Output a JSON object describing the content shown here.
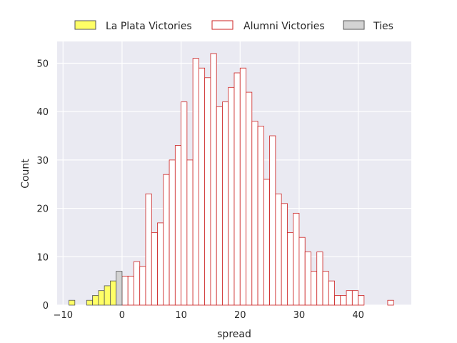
{
  "chart_data": {
    "type": "bar",
    "xlabel": "spread",
    "ylabel": "Count",
    "xlim": [
      -11,
      49
    ],
    "ylim": [
      0,
      54.5
    ],
    "xticks": [
      -10,
      0,
      10,
      20,
      30,
      40
    ],
    "yticks": [
      0,
      10,
      20,
      30,
      40,
      50
    ],
    "grid": true,
    "legend_position": "top-center",
    "bin_width": 1,
    "series": [
      {
        "name": "La Plata Victories",
        "fill": "#ffff66",
        "stroke": "#555555",
        "bins": [
          [
            -9,
            1
          ],
          [
            -6,
            1
          ],
          [
            -5,
            2
          ],
          [
            -4,
            3
          ],
          [
            -3,
            4
          ],
          [
            -2,
            5
          ]
        ]
      },
      {
        "name": "Alumni Victories",
        "fill": "#ffffff",
        "stroke": "#cc2222",
        "bins": [
          [
            0,
            6
          ],
          [
            1,
            6
          ],
          [
            2,
            9
          ],
          [
            3,
            8
          ],
          [
            4,
            23
          ],
          [
            5,
            15
          ],
          [
            6,
            17
          ],
          [
            7,
            27
          ],
          [
            8,
            30
          ],
          [
            9,
            33
          ],
          [
            10,
            42
          ],
          [
            11,
            30
          ],
          [
            12,
            51
          ],
          [
            13,
            49
          ],
          [
            14,
            47
          ],
          [
            15,
            52
          ],
          [
            16,
            41
          ],
          [
            17,
            42
          ],
          [
            18,
            45
          ],
          [
            19,
            48
          ],
          [
            20,
            49
          ],
          [
            21,
            44
          ],
          [
            22,
            38
          ],
          [
            23,
            37
          ],
          [
            24,
            26
          ],
          [
            25,
            35
          ],
          [
            26,
            23
          ],
          [
            27,
            21
          ],
          [
            28,
            15
          ],
          [
            29,
            19
          ],
          [
            30,
            14
          ],
          [
            31,
            11
          ],
          [
            32,
            7
          ],
          [
            33,
            11
          ],
          [
            34,
            7
          ],
          [
            35,
            5
          ],
          [
            36,
            2
          ],
          [
            37,
            2
          ],
          [
            38,
            3
          ],
          [
            39,
            3
          ],
          [
            40,
            2
          ],
          [
            45,
            1
          ]
        ]
      },
      {
        "name": "Ties",
        "fill": "#d3d3d3",
        "stroke": "#555555",
        "bins": [
          [
            -1,
            7
          ]
        ]
      }
    ]
  },
  "colors": {
    "plot_bg": "#eaeaf2",
    "grid": "#ffffff",
    "text": "#262626"
  }
}
